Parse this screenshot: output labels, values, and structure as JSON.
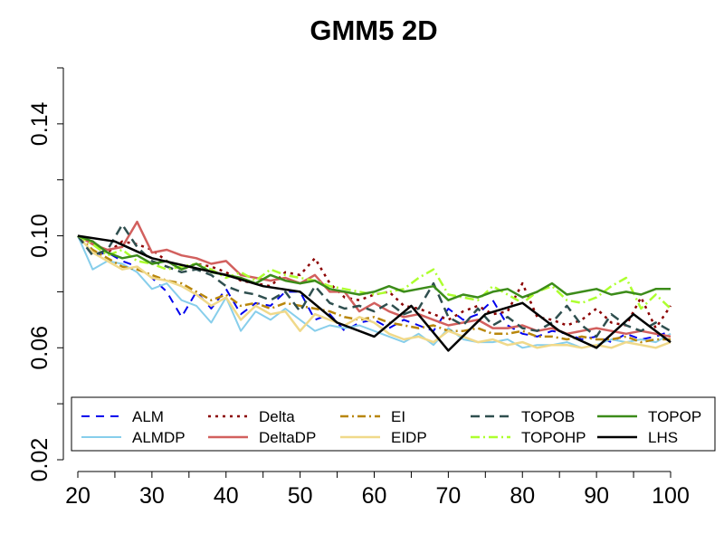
{
  "chart_data": {
    "type": "line",
    "title": "GMM5 2D",
    "xlabel": "",
    "ylabel": "",
    "xlim": [
      20,
      100
    ],
    "ylim": [
      0.02,
      0.16
    ],
    "xticks": [
      20,
      30,
      40,
      50,
      60,
      70,
      80,
      90,
      100
    ],
    "xtick_labels": [
      "20",
      "30",
      "40",
      "50",
      "60",
      "70",
      "80",
      "90",
      "100"
    ],
    "yticks": [
      0.02,
      0.06,
      0.1,
      0.14
    ],
    "ytick_labels": [
      "0.02",
      "0.06",
      "0.10",
      "0.14"
    ],
    "grid": false,
    "legend_position": "bottom",
    "series": [
      {
        "name": "ALM",
        "color": "#0000ee",
        "dash": "9,7",
        "width": 2,
        "x": [
          20,
          22,
          24,
          26,
          28,
          30,
          32,
          34,
          36,
          38,
          40,
          42,
          44,
          46,
          48,
          50,
          52,
          54,
          56,
          58,
          60,
          62,
          64,
          66,
          68,
          70,
          72,
          74,
          76,
          78,
          80,
          82,
          84,
          86,
          88,
          90,
          92,
          94,
          96,
          98,
          100
        ],
        "y": [
          0.1,
          0.093,
          0.094,
          0.091,
          0.089,
          0.085,
          0.08,
          0.071,
          0.08,
          0.074,
          0.081,
          0.072,
          0.076,
          0.075,
          0.08,
          0.08,
          0.07,
          0.072,
          0.066,
          0.069,
          0.07,
          0.067,
          0.07,
          0.068,
          0.066,
          0.074,
          0.07,
          0.072,
          0.077,
          0.068,
          0.065,
          0.064,
          0.066,
          0.065,
          0.063,
          0.064,
          0.062,
          0.065,
          0.063,
          0.064,
          0.066
        ]
      },
      {
        "name": "ALMDP",
        "color": "#87ceeb",
        "dash": "",
        "width": 2,
        "x": [
          20,
          22,
          24,
          26,
          28,
          30,
          32,
          34,
          36,
          38,
          40,
          42,
          44,
          46,
          48,
          50,
          52,
          54,
          56,
          58,
          60,
          62,
          64,
          66,
          68,
          70,
          72,
          74,
          76,
          78,
          80,
          82,
          84,
          86,
          88,
          90,
          92,
          94,
          96,
          98,
          100
        ],
        "y": [
          0.1,
          0.088,
          0.091,
          0.09,
          0.087,
          0.081,
          0.083,
          0.077,
          0.075,
          0.069,
          0.078,
          0.066,
          0.073,
          0.07,
          0.074,
          0.07,
          0.066,
          0.068,
          0.067,
          0.068,
          0.066,
          0.064,
          0.062,
          0.065,
          0.061,
          0.067,
          0.063,
          0.062,
          0.062,
          0.063,
          0.06,
          0.061,
          0.061,
          0.062,
          0.06,
          0.061,
          0.063,
          0.062,
          0.063,
          0.062,
          0.065
        ]
      },
      {
        "name": "Delta",
        "color": "#8b0000",
        "dash": "3,5",
        "width": 2.5,
        "x": [
          20,
          22,
          24,
          26,
          28,
          30,
          32,
          34,
          36,
          38,
          40,
          42,
          44,
          46,
          48,
          50,
          52,
          54,
          56,
          58,
          60,
          62,
          64,
          66,
          68,
          70,
          72,
          74,
          76,
          78,
          80,
          82,
          84,
          86,
          88,
          90,
          92,
          94,
          96,
          98,
          100
        ],
        "y": [
          0.1,
          0.098,
          0.094,
          0.098,
          0.097,
          0.095,
          0.091,
          0.088,
          0.09,
          0.089,
          0.087,
          0.084,
          0.083,
          0.082,
          0.087,
          0.086,
          0.092,
          0.083,
          0.078,
          0.077,
          0.079,
          0.08,
          0.075,
          0.074,
          0.072,
          0.07,
          0.073,
          0.075,
          0.072,
          0.073,
          0.083,
          0.071,
          0.07,
          0.068,
          0.07,
          0.074,
          0.069,
          0.068,
          0.078,
          0.067,
          0.075
        ]
      },
      {
        "name": "DeltaDP",
        "color": "#d2605e",
        "dash": "",
        "width": 2.5,
        "x": [
          20,
          22,
          24,
          26,
          28,
          30,
          32,
          34,
          36,
          38,
          40,
          42,
          44,
          46,
          48,
          50,
          52,
          54,
          56,
          58,
          60,
          62,
          64,
          66,
          68,
          70,
          72,
          74,
          76,
          78,
          80,
          82,
          84,
          86,
          88,
          90,
          92,
          94,
          96,
          98,
          100
        ],
        "y": [
          0.1,
          0.097,
          0.095,
          0.096,
          0.105,
          0.094,
          0.095,
          0.093,
          0.092,
          0.09,
          0.091,
          0.086,
          0.085,
          0.084,
          0.085,
          0.083,
          0.086,
          0.08,
          0.08,
          0.073,
          0.076,
          0.073,
          0.071,
          0.072,
          0.07,
          0.068,
          0.069,
          0.07,
          0.067,
          0.067,
          0.068,
          0.066,
          0.067,
          0.065,
          0.066,
          0.067,
          0.066,
          0.065,
          0.066,
          0.065,
          0.064
        ]
      },
      {
        "name": "EI",
        "color": "#b8860b",
        "dash": "9,4,2,4",
        "width": 2.5,
        "x": [
          20,
          22,
          24,
          26,
          28,
          30,
          32,
          34,
          36,
          38,
          40,
          42,
          44,
          46,
          48,
          50,
          52,
          54,
          56,
          58,
          60,
          62,
          64,
          66,
          68,
          70,
          72,
          74,
          76,
          78,
          80,
          82,
          84,
          86,
          88,
          90,
          92,
          94,
          96,
          98,
          100
        ],
        "y": [
          0.1,
          0.095,
          0.092,
          0.089,
          0.088,
          0.086,
          0.084,
          0.083,
          0.08,
          0.077,
          0.079,
          0.075,
          0.076,
          0.074,
          0.076,
          0.075,
          0.074,
          0.073,
          0.071,
          0.07,
          0.071,
          0.069,
          0.068,
          0.067,
          0.068,
          0.066,
          0.066,
          0.067,
          0.065,
          0.065,
          0.066,
          0.064,
          0.064,
          0.063,
          0.064,
          0.063,
          0.063,
          0.064,
          0.062,
          0.063,
          0.063
        ]
      },
      {
        "name": "EIDP",
        "color": "#f0d98a",
        "dash": "",
        "width": 2.5,
        "x": [
          20,
          22,
          24,
          26,
          28,
          30,
          32,
          34,
          36,
          38,
          40,
          42,
          44,
          46,
          48,
          50,
          52,
          54,
          56,
          58,
          60,
          62,
          64,
          66,
          68,
          70,
          72,
          74,
          76,
          78,
          80,
          82,
          84,
          86,
          88,
          90,
          92,
          94,
          96,
          98,
          100
        ],
        "y": [
          0.1,
          0.094,
          0.091,
          0.088,
          0.089,
          0.085,
          0.084,
          0.082,
          0.079,
          0.075,
          0.078,
          0.07,
          0.075,
          0.072,
          0.073,
          0.066,
          0.072,
          0.07,
          0.068,
          0.071,
          0.069,
          0.065,
          0.063,
          0.064,
          0.062,
          0.066,
          0.064,
          0.062,
          0.063,
          0.061,
          0.062,
          0.06,
          0.061,
          0.061,
          0.06,
          0.061,
          0.06,
          0.062,
          0.061,
          0.06,
          0.062
        ]
      },
      {
        "name": "TOPOB",
        "color": "#2f4f4f",
        "dash": "10,6",
        "width": 2.5,
        "x": [
          20,
          22,
          24,
          26,
          28,
          30,
          32,
          34,
          36,
          38,
          40,
          42,
          44,
          46,
          48,
          50,
          52,
          54,
          56,
          58,
          60,
          62,
          64,
          66,
          68,
          70,
          72,
          74,
          76,
          78,
          80,
          82,
          84,
          86,
          88,
          90,
          92,
          94,
          96,
          98,
          100
        ],
        "y": [
          0.1,
          0.093,
          0.095,
          0.104,
          0.096,
          0.091,
          0.089,
          0.087,
          0.088,
          0.086,
          0.082,
          0.08,
          0.079,
          0.077,
          0.08,
          0.073,
          0.082,
          0.076,
          0.074,
          0.075,
          0.073,
          0.076,
          0.072,
          0.074,
          0.083,
          0.071,
          0.068,
          0.074,
          0.068,
          0.071,
          0.067,
          0.066,
          0.069,
          0.075,
          0.068,
          0.064,
          0.072,
          0.068,
          0.066,
          0.069,
          0.066
        ]
      },
      {
        "name": "TOPOHP",
        "color": "#adff2f",
        "dash": "10,4,2,4",
        "width": 2.5,
        "x": [
          20,
          22,
          24,
          26,
          28,
          30,
          32,
          34,
          36,
          38,
          40,
          42,
          44,
          46,
          48,
          50,
          52,
          54,
          56,
          58,
          60,
          62,
          64,
          66,
          68,
          70,
          72,
          74,
          76,
          78,
          80,
          82,
          84,
          86,
          88,
          90,
          92,
          94,
          96,
          98,
          100
        ],
        "y": [
          0.1,
          0.097,
          0.093,
          0.095,
          0.091,
          0.09,
          0.088,
          0.089,
          0.09,
          0.088,
          0.085,
          0.087,
          0.084,
          0.088,
          0.086,
          0.085,
          0.084,
          0.082,
          0.081,
          0.08,
          0.079,
          0.08,
          0.081,
          0.085,
          0.088,
          0.079,
          0.078,
          0.077,
          0.082,
          0.079,
          0.076,
          0.08,
          0.082,
          0.077,
          0.076,
          0.078,
          0.082,
          0.085,
          0.074,
          0.079,
          0.074
        ]
      },
      {
        "name": "TOPOP",
        "color": "#3c8c1a",
        "dash": "",
        "width": 2.5,
        "x": [
          20,
          22,
          24,
          26,
          28,
          30,
          32,
          34,
          36,
          38,
          40,
          42,
          44,
          46,
          48,
          50,
          52,
          54,
          56,
          58,
          60,
          62,
          64,
          66,
          68,
          70,
          72,
          74,
          76,
          78,
          80,
          82,
          84,
          86,
          88,
          90,
          92,
          94,
          96,
          98,
          100
        ],
        "y": [
          0.1,
          0.098,
          0.094,
          0.092,
          0.093,
          0.09,
          0.091,
          0.088,
          0.09,
          0.087,
          0.086,
          0.085,
          0.083,
          0.086,
          0.084,
          0.083,
          0.084,
          0.081,
          0.08,
          0.079,
          0.08,
          0.082,
          0.08,
          0.081,
          0.082,
          0.077,
          0.079,
          0.078,
          0.08,
          0.081,
          0.078,
          0.08,
          0.083,
          0.079,
          0.08,
          0.081,
          0.079,
          0.08,
          0.079,
          0.081,
          0.081
        ]
      },
      {
        "name": "LHS",
        "color": "#000000",
        "dash": "",
        "width": 2.5,
        "x": [
          20,
          25,
          30,
          35,
          40,
          45,
          50,
          55,
          60,
          65,
          70,
          75,
          80,
          85,
          90,
          95,
          100
        ],
        "y": [
          0.1,
          0.098,
          0.092,
          0.089,
          0.086,
          0.082,
          0.08,
          0.069,
          0.064,
          0.075,
          0.059,
          0.072,
          0.076,
          0.066,
          0.06,
          0.072,
          0.062
        ]
      }
    ]
  }
}
